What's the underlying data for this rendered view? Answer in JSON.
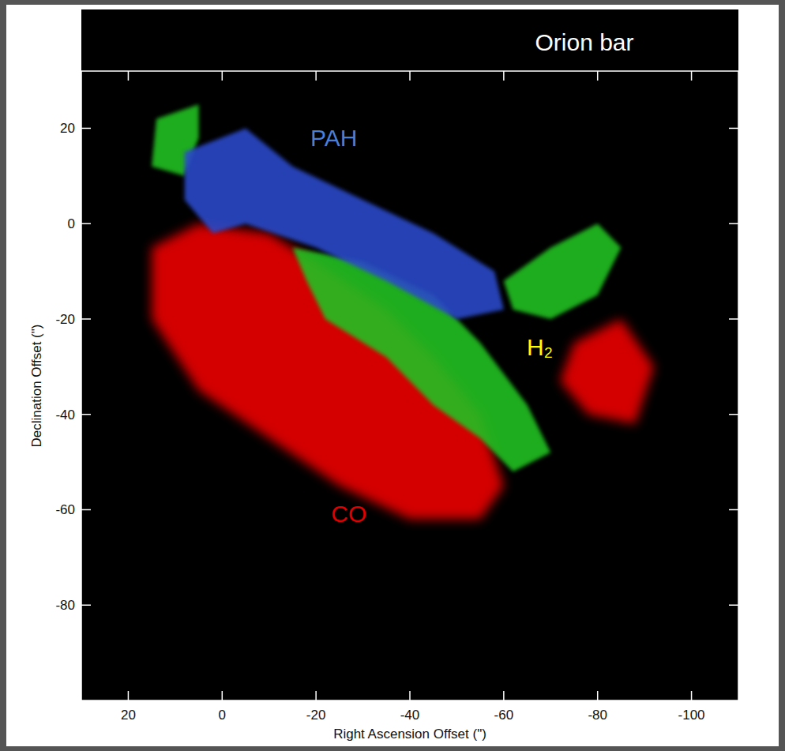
{
  "chart_data": {
    "type": "image",
    "title": "Orion bar",
    "x_label": "Right Ascension Offset (\")",
    "y_label": "Declination Offset (\")",
    "xlim": [
      30,
      -110
    ],
    "ylim": [
      -100,
      32
    ],
    "xticks": [
      20,
      0,
      -20,
      -40,
      -60,
      -80,
      -100
    ],
    "yticks": [
      20,
      0,
      -20,
      -40,
      -60,
      -80
    ],
    "series": [
      {
        "name": "CO",
        "color": "#e00000",
        "label_x": -27,
        "label_y": -62.5,
        "shapes": [
          [
            [
              15,
              -5
            ],
            [
              5,
              0
            ],
            [
              -10,
              -2
            ],
            [
              -20,
              -8
            ],
            [
              -35,
              -18
            ],
            [
              -45,
              -28
            ],
            [
              -55,
              -40
            ],
            [
              -60,
              -55
            ],
            [
              -55,
              -62
            ],
            [
              -40,
              -62
            ],
            [
              -25,
              -55
            ],
            [
              -10,
              -45
            ],
            [
              5,
              -35
            ],
            [
              15,
              -20
            ]
          ],
          [
            [
              -75,
              -25
            ],
            [
              -85,
              -20
            ],
            [
              -92,
              -30
            ],
            [
              -88,
              -42
            ],
            [
              -78,
              -40
            ],
            [
              -72,
              -33
            ]
          ]
        ]
      },
      {
        "name": "H₂",
        "color": "#22c022",
        "label_x": -67.7,
        "label_y": -27.6,
        "shapes": [
          [
            [
              -15,
              -5
            ],
            [
              -30,
              -8
            ],
            [
              -45,
              -15
            ],
            [
              -55,
              -25
            ],
            [
              -65,
              -38
            ],
            [
              -70,
              -48
            ],
            [
              -62,
              -52
            ],
            [
              -55,
              -45
            ],
            [
              -45,
              -38
            ],
            [
              -35,
              -28
            ],
            [
              -22,
              -20
            ],
            [
              -18,
              -12
            ]
          ],
          [
            [
              -60,
              -12
            ],
            [
              -70,
              -5
            ],
            [
              -80,
              0
            ],
            [
              -85,
              -5
            ],
            [
              -80,
              -15
            ],
            [
              -70,
              -20
            ],
            [
              -62,
              -18
            ]
          ],
          [
            [
              5,
              25
            ],
            [
              14,
              22
            ],
            [
              15,
              12
            ],
            [
              8,
              10
            ],
            [
              5,
              18
            ]
          ]
        ]
      },
      {
        "name": "PAH",
        "color": "#2a48c8",
        "label_x": -23.8,
        "label_y": 16.3,
        "shapes": [
          [
            [
              8,
              15
            ],
            [
              -5,
              20
            ],
            [
              -15,
              12
            ],
            [
              -30,
              5
            ],
            [
              -45,
              -2
            ],
            [
              -58,
              -10
            ],
            [
              -60,
              -18
            ],
            [
              -50,
              -20
            ],
            [
              -35,
              -12
            ],
            [
              -20,
              -5
            ],
            [
              -5,
              0
            ],
            [
              2,
              -2
            ],
            [
              8,
              5
            ]
          ]
        ]
      }
    ]
  }
}
